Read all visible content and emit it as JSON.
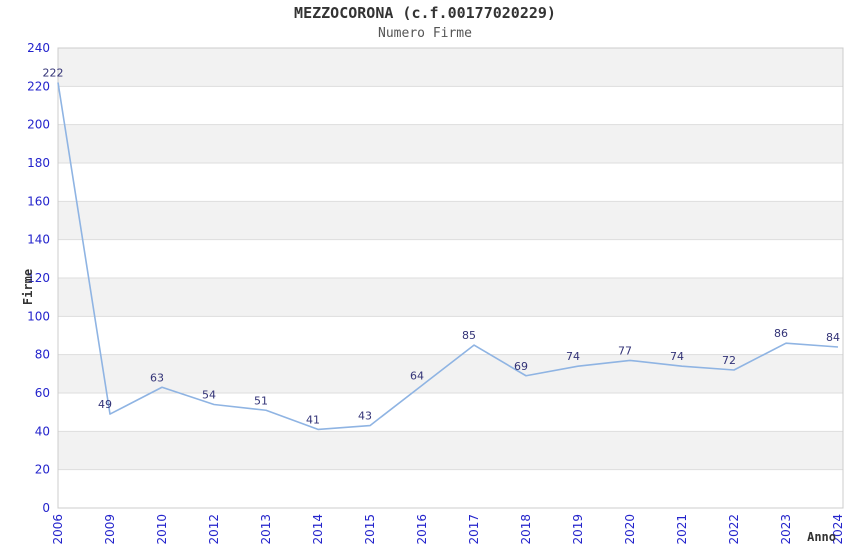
{
  "chart_data": {
    "type": "line",
    "title": "MEZZOCORONA (c.f.00177020229)",
    "subtitle": "Numero Firme",
    "xlabel": "Anno",
    "ylabel": "Firme",
    "categories": [
      "2006",
      "2009",
      "2010",
      "2012",
      "2013",
      "2014",
      "2015",
      "2016",
      "2017",
      "2018",
      "2019",
      "2020",
      "2021",
      "2022",
      "2023",
      "2024"
    ],
    "series": [
      {
        "name": "Numero Firme",
        "values": [
          222,
          49,
          63,
          54,
          51,
          41,
          43,
          64,
          85,
          69,
          74,
          77,
          74,
          72,
          86,
          84
        ]
      }
    ],
    "ylim": [
      0,
      240
    ],
    "ytick_step": 20,
    "yticks": [
      0,
      20,
      40,
      60,
      80,
      100,
      120,
      140,
      160,
      180,
      200,
      220,
      240
    ],
    "grid": true,
    "legend": "none",
    "colors": {
      "line": "#8fb4e3",
      "data_label": "#333377",
      "tick_label": "#2424cc",
      "axis_title": "#333333",
      "title": "#333333",
      "subtitle": "#555555",
      "band_alt": "#f2f2f2",
      "gridline": "#dddddd",
      "plot_border": "#cccccc",
      "background": "#ffffff"
    }
  }
}
